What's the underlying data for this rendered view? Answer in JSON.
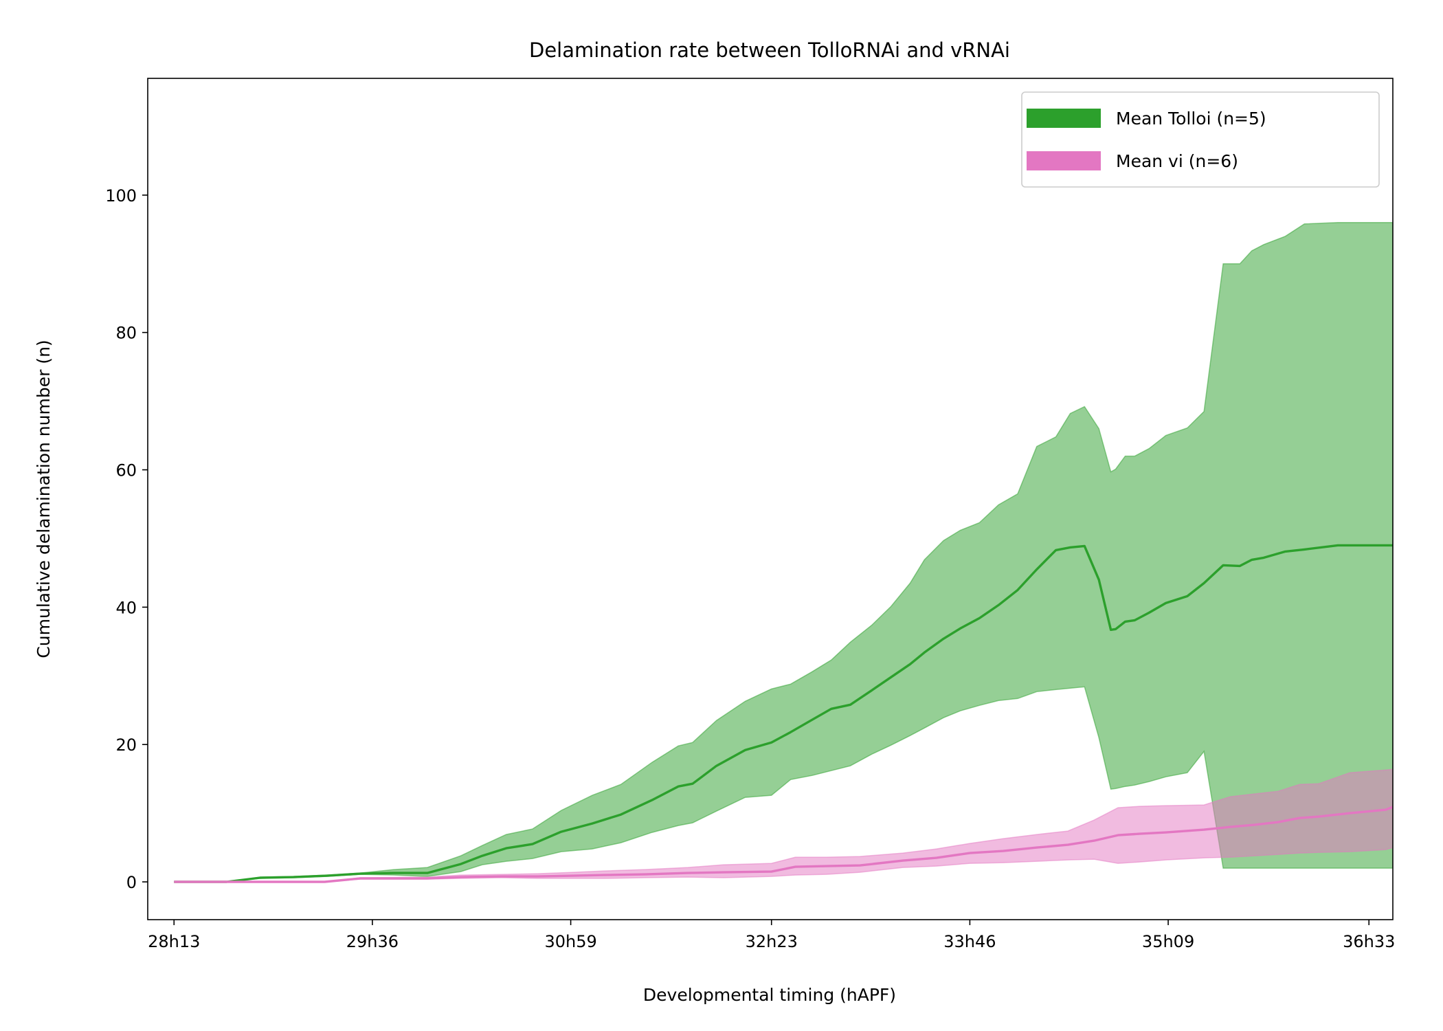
{
  "chart_data": {
    "type": "area",
    "title": "Delamination rate between TolloRNAi and vRNAi",
    "xlabel": "Developmental timing (hAPF)",
    "ylabel": "Cumulative delamination number (n)",
    "x_unit": "minutes after pupa formation",
    "xlim": [
      1682,
      2203
    ],
    "ylim": [
      -5.5,
      117
    ],
    "x_ticks": [
      {
        "x": 1693,
        "label": "28h13"
      },
      {
        "x": 1776,
        "label": "29h36"
      },
      {
        "x": 1859,
        "label": "30h59"
      },
      {
        "x": 1943,
        "label": "32h23"
      },
      {
        "x": 2026,
        "label": "33h46"
      },
      {
        "x": 2109,
        "label": "35h09"
      },
      {
        "x": 2193,
        "label": "36h33"
      }
    ],
    "y_ticks": [
      0,
      20,
      40,
      60,
      80,
      100
    ],
    "legend": {
      "position": "top-right"
    },
    "grid": false,
    "series": [
      {
        "name": "Mean Tolloi (n=5)",
        "color": "#2ca02c",
        "fill_color": "#2ca02c",
        "x": [
          1693,
          1715,
          1729,
          1743,
          1757,
          1771,
          1785,
          1799,
          1813,
          1822,
          1832,
          1843,
          1855,
          1868,
          1880,
          1893,
          1904,
          1910,
          1920,
          1932,
          1943,
          1951,
          1960,
          1968,
          1976,
          1985,
          1993,
          2001,
          2007,
          2015,
          2022,
          2030,
          2038,
          2046,
          2054,
          2062,
          2068,
          2074,
          2080,
          2085,
          2087,
          2091,
          2095,
          2101,
          2108,
          2117,
          2124,
          2132,
          2139,
          2144,
          2149,
          2158,
          2166,
          2180,
          2203
        ],
        "mean": [
          0,
          0,
          0.6,
          0.7,
          0.9,
          1.2,
          1.3,
          1.3,
          2.6,
          3.8,
          4.9,
          5.5,
          7.3,
          8.5,
          9.8,
          11.9,
          13.9,
          14.3,
          16.9,
          19.2,
          20.3,
          21.8,
          23.6,
          25.2,
          25.8,
          27.9,
          29.8,
          31.7,
          33.4,
          35.4,
          36.9,
          38.4,
          40.3,
          42.5,
          45.5,
          48.3,
          48.7,
          48.9,
          44.0,
          36.7,
          36.8,
          37.9,
          38.1,
          39.2,
          40.6,
          41.6,
          43.5,
          46.1,
          46.0,
          46.9,
          47.2,
          48.1,
          48.4,
          49.0,
          49.0
        ],
        "upper": [
          0,
          0,
          0.7,
          0.8,
          1.0,
          1.3,
          1.8,
          2.1,
          3.8,
          5.3,
          6.9,
          7.7,
          10.4,
          12.6,
          14.2,
          17.4,
          19.8,
          20.3,
          23.5,
          26.3,
          28.1,
          28.8,
          30.6,
          32.3,
          34.9,
          37.4,
          40.1,
          43.5,
          46.9,
          49.7,
          51.2,
          52.3,
          54.9,
          56.5,
          63.4,
          64.8,
          68.2,
          69.2,
          66.0,
          59.7,
          60.1,
          62.0,
          62.0,
          63.1,
          65.0,
          66.1,
          68.5,
          90.0,
          90.0,
          91.9,
          92.8,
          94.0,
          95.8,
          96.0,
          96.0
        ],
        "lower": [
          0,
          0,
          0.5,
          0.6,
          0.8,
          1.1,
          1.0,
          0.8,
          1.5,
          2.5,
          3.0,
          3.4,
          4.4,
          4.8,
          5.7,
          7.2,
          8.2,
          8.6,
          10.3,
          12.3,
          12.6,
          14.9,
          15.5,
          16.2,
          16.9,
          18.6,
          19.9,
          21.3,
          22.4,
          23.9,
          24.9,
          25.7,
          26.4,
          26.7,
          27.7,
          28.0,
          28.2,
          28.4,
          21.0,
          13.5,
          13.6,
          13.9,
          14.1,
          14.6,
          15.3,
          15.9,
          19.0,
          2.0,
          2.0,
          2.0,
          2.0,
          2.0,
          2.0,
          2.0,
          2.0
        ]
      },
      {
        "name": "Mean vi (n=6)",
        "color": "#e377c2",
        "fill_color": "#e377c2",
        "x": [
          1693,
          1756,
          1771,
          1799,
          1813,
          1830,
          1845,
          1860,
          1873,
          1890,
          1908,
          1923,
          1943,
          1953,
          1966,
          1980,
          1998,
          2012,
          2026,
          2040,
          2054,
          2067,
          2078,
          2088,
          2097,
          2108,
          2124,
          2135,
          2145,
          2155,
          2164,
          2172,
          2185,
          2200,
          2203
        ],
        "mean": [
          0,
          0,
          0.5,
          0.5,
          0.7,
          0.8,
          0.8,
          0.9,
          1.0,
          1.1,
          1.3,
          1.4,
          1.5,
          2.2,
          2.3,
          2.4,
          3.1,
          3.5,
          4.2,
          4.5,
          5.0,
          5.4,
          6.0,
          6.8,
          7.0,
          7.2,
          7.6,
          8.0,
          8.3,
          8.7,
          9.3,
          9.5,
          10.0,
          10.5,
          10.9
        ],
        "upper": [
          0,
          0,
          0.6,
          0.7,
          1.0,
          1.1,
          1.2,
          1.4,
          1.6,
          1.8,
          2.1,
          2.5,
          2.7,
          3.6,
          3.6,
          3.7,
          4.2,
          4.8,
          5.6,
          6.3,
          6.9,
          7.4,
          9.0,
          10.8,
          11.0,
          11.1,
          11.2,
          12.4,
          12.8,
          13.2,
          14.2,
          14.3,
          15.9,
          16.3,
          16.4
        ],
        "lower": [
          0,
          0,
          0.4,
          0.4,
          0.5,
          0.6,
          0.5,
          0.5,
          0.5,
          0.6,
          0.7,
          0.6,
          0.8,
          1.0,
          1.1,
          1.4,
          2.1,
          2.3,
          2.7,
          2.8,
          3.0,
          3.2,
          3.3,
          2.7,
          2.9,
          3.2,
          3.5,
          3.6,
          3.8,
          4.0,
          4.2,
          4.3,
          4.4,
          4.7,
          5.0
        ]
      }
    ]
  }
}
